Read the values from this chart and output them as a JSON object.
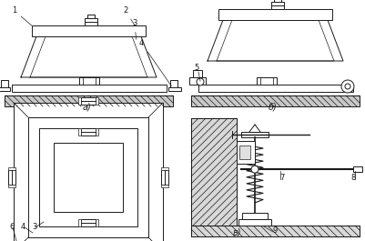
{
  "background_color": "#ffffff",
  "line_color": "#1a1a1a",
  "lw": 0.7,
  "label_a": "а)",
  "label_b": "б)",
  "label_v": "в)"
}
